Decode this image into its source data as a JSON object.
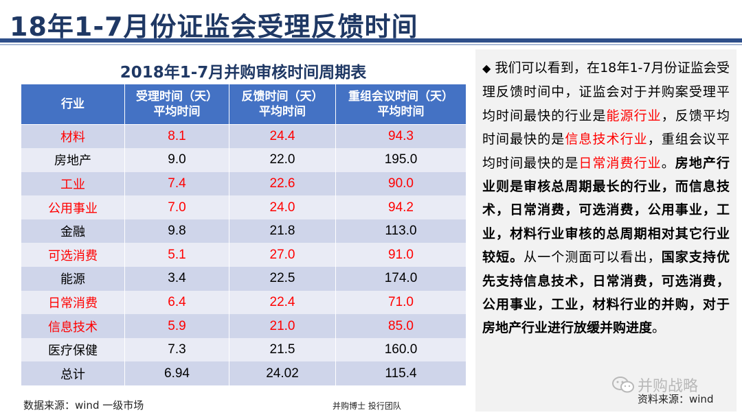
{
  "header": {
    "title": "18年1-7月份证监会受理反馈时间"
  },
  "table": {
    "title": "2018年1-7月并购审核时间周期表",
    "headers": [
      {
        "line1": "行业",
        "line2": ""
      },
      {
        "line1": "受理时间（天）",
        "line2": "平均时间"
      },
      {
        "line1": "反馈时间（天）",
        "line2": "平均时间"
      },
      {
        "line1": "重组会议时间（天）",
        "line2": "平均时间"
      }
    ],
    "rows": [
      {
        "industry": "材料",
        "accept": "8.1",
        "feedback": "24.4",
        "meeting": "94.3"
      },
      {
        "industry": "房地产",
        "accept": "9.0",
        "feedback": "22.0",
        "meeting": "195.0"
      },
      {
        "industry": "工业",
        "accept": "7.4",
        "feedback": "22.6",
        "meeting": "90.0"
      },
      {
        "industry": "公用事业",
        "accept": "7.0",
        "feedback": "24.0",
        "meeting": "94.2"
      },
      {
        "industry": "金融",
        "accept": "9.8",
        "feedback": "21.8",
        "meeting": "113.0"
      },
      {
        "industry": "可选消费",
        "accept": "5.1",
        "feedback": "27.0",
        "meeting": "91.0"
      },
      {
        "industry": "能源",
        "accept": "3.4",
        "feedback": "22.5",
        "meeting": "174.0"
      },
      {
        "industry": "日常消费",
        "accept": "6.4",
        "feedback": "22.4",
        "meeting": "71.0"
      },
      {
        "industry": "信息技术",
        "accept": "5.9",
        "feedback": "21.0",
        "meeting": "85.0"
      },
      {
        "industry": "医疗保健",
        "accept": "7.3",
        "feedback": "21.5",
        "meeting": "160.0"
      },
      {
        "industry": "总计",
        "accept": "6.94",
        "feedback": "24.02",
        "meeting": "115.4"
      }
    ],
    "highlight_color": "#ff0000",
    "header_color": "#4472c4"
  },
  "footer": {
    "source": "数据来源：wind 一级市场",
    "team": "并购博士 投行团队"
  },
  "panel": {
    "bullet": "◆",
    "segments": [
      {
        "text": "我们可以看到，在18年1-7月份证监会受理反馈时间中，证监会对于并购案受理平均时间最快的行业是",
        "style": "normal"
      },
      {
        "text": "能源行业",
        "style": "red"
      },
      {
        "text": "，反馈平均时间最快的是",
        "style": "normal"
      },
      {
        "text": "信息技术行业",
        "style": "red"
      },
      {
        "text": "，重组会议平均时间最快的是",
        "style": "normal"
      },
      {
        "text": "日常消费行业",
        "style": "red"
      },
      {
        "text": "。",
        "style": "normal"
      },
      {
        "text": "房地产行业则是审核总周期最长的行业，而信息技术，日常消费，可选消费，公用事业，工业，材料行业审核的总周期相对其它行业较短。",
        "style": "bold"
      },
      {
        "text": "从一个测面可以看出，",
        "style": "normal"
      },
      {
        "text": "国家支持优先支持信息技术，日常消费，可选消费，公用事业，工业，材料行业的并购，对于房地产行业进行放缓并购进度",
        "style": "bold"
      },
      {
        "text": "。",
        "style": "normal"
      }
    ],
    "watermark": "并购战略",
    "source": "资料来源：wind"
  }
}
